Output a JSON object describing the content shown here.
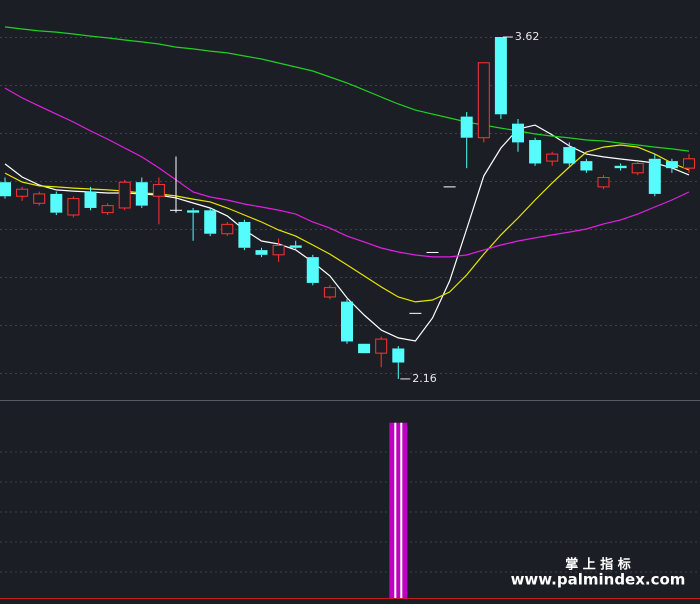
{
  "chart_data": {
    "type": "candlestick",
    "ylim": [
      2.07,
      3.778
    ],
    "yticks": [
      3.62,
      3.415,
      3.21,
      3.005,
      2.8,
      2.595,
      2.39,
      2.185
    ],
    "grid": true,
    "up_color": "#ff3232",
    "down_color": "#54fcfc",
    "doji_color": "#ffffff",
    "open": [
      3.0,
      2.94,
      2.91,
      2.95,
      2.86,
      2.96,
      2.87,
      2.89,
      3.0,
      2.94,
      2.88,
      2.88,
      2.88,
      2.78,
      2.83,
      2.71,
      2.69,
      2.73,
      2.68,
      2.51,
      2.49,
      2.31,
      2.27,
      2.29,
      2.44,
      2.7,
      2.98,
      3.28,
      3.19,
      3.62,
      3.25,
      3.18,
      3.09,
      3.15,
      3.09,
      2.98,
      3.07,
      3.04,
      3.1,
      3.09,
      3.06
    ],
    "close": [
      2.94,
      2.97,
      2.95,
      2.87,
      2.93,
      2.89,
      2.9,
      3.0,
      2.9,
      2.99,
      2.88,
      2.87,
      2.78,
      2.82,
      2.72,
      2.69,
      2.73,
      2.72,
      2.57,
      2.55,
      2.32,
      2.27,
      2.33,
      2.23,
      2.44,
      2.7,
      2.98,
      3.19,
      3.51,
      3.29,
      3.17,
      3.08,
      3.12,
      3.08,
      3.05,
      3.02,
      3.06,
      3.08,
      2.95,
      3.06,
      3.1
    ],
    "high": [
      3.02,
      2.98,
      2.96,
      2.96,
      2.94,
      2.98,
      2.91,
      3.01,
      3.02,
      3.02,
      3.11,
      2.89,
      2.89,
      2.83,
      2.84,
      2.72,
      2.76,
      2.75,
      2.69,
      2.56,
      2.5,
      2.31,
      2.34,
      2.3,
      2.44,
      2.7,
      2.98,
      3.3,
      3.51,
      3.62,
      3.27,
      3.19,
      3.13,
      3.17,
      3.1,
      3.03,
      3.08,
      3.09,
      3.12,
      3.1,
      3.12
    ],
    "low": [
      2.93,
      2.92,
      2.9,
      2.86,
      2.85,
      2.88,
      2.86,
      2.88,
      2.89,
      2.82,
      2.87,
      2.75,
      2.77,
      2.77,
      2.71,
      2.68,
      2.66,
      2.71,
      2.56,
      2.5,
      2.31,
      2.27,
      2.21,
      2.16,
      2.44,
      2.7,
      2.98,
      3.06,
      3.17,
      3.27,
      3.13,
      3.07,
      3.07,
      3.07,
      3.04,
      2.97,
      3.05,
      3.03,
      2.94,
      3.04,
      3.04
    ],
    "series": [
      {
        "color": "#ffffff",
        "values": [
          3.078,
          3.022,
          2.988,
          2.967,
          2.962,
          2.958,
          2.954,
          2.954,
          2.95,
          2.945,
          2.933,
          2.911,
          2.89,
          2.856,
          2.796,
          2.749,
          2.736,
          2.711,
          2.659,
          2.6,
          2.506,
          2.433,
          2.369,
          2.335,
          2.322,
          2.42,
          2.578,
          2.8,
          3.027,
          3.146,
          3.227,
          3.244,
          3.202,
          3.155,
          3.12,
          3.108,
          3.099,
          3.091,
          3.082,
          3.061,
          3.031
        ]
      },
      {
        "color": "#e6e600",
        "values": [
          3.039,
          3.001,
          2.984,
          2.98,
          2.975,
          2.971,
          2.967,
          2.962,
          2.954,
          2.95,
          2.941,
          2.928,
          2.916,
          2.89,
          2.86,
          2.83,
          2.796,
          2.77,
          2.732,
          2.693,
          2.647,
          2.6,
          2.553,
          2.51,
          2.489,
          2.497,
          2.531,
          2.604,
          2.693,
          2.775,
          2.847,
          2.924,
          2.997,
          3.065,
          3.129,
          3.15,
          3.159,
          3.15,
          3.12,
          3.082,
          3.052
        ]
      },
      {
        "color": "#e020e0",
        "values": [
          3.402,
          3.36,
          3.325,
          3.291,
          3.257,
          3.219,
          3.184,
          3.146,
          3.108,
          3.061,
          3.01,
          2.958,
          2.937,
          2.924,
          2.907,
          2.894,
          2.881,
          2.864,
          2.83,
          2.804,
          2.77,
          2.745,
          2.719,
          2.702,
          2.689,
          2.681,
          2.681,
          2.689,
          2.711,
          2.732,
          2.749,
          2.762,
          2.775,
          2.787,
          2.8,
          2.822,
          2.839,
          2.864,
          2.894,
          2.924,
          2.958
        ]
      },
      {
        "color": "#20d020",
        "values": [
          3.663,
          3.654,
          3.646,
          3.641,
          3.633,
          3.624,
          3.616,
          3.607,
          3.599,
          3.59,
          3.577,
          3.569,
          3.56,
          3.552,
          3.539,
          3.526,
          3.509,
          3.492,
          3.475,
          3.449,
          3.424,
          3.394,
          3.364,
          3.334,
          3.308,
          3.291,
          3.274,
          3.257,
          3.244,
          3.231,
          3.219,
          3.206,
          3.197,
          3.189,
          3.18,
          3.176,
          3.167,
          3.159,
          3.15,
          3.142,
          3.133
        ]
      }
    ],
    "high_low_labels": [
      3.62,
      2.16
    ],
    "indicator": {
      "color": "#c000c0",
      "ylim": [
        0,
        1.13
      ],
      "values": [
        0,
        0,
        0,
        0,
        0,
        0,
        0,
        0,
        0,
        0,
        0,
        0,
        0,
        0,
        0,
        0,
        0,
        0,
        0,
        0,
        0,
        0,
        0,
        1,
        0,
        0,
        0,
        0,
        0,
        0,
        0,
        0,
        0,
        0,
        0,
        0,
        0,
        0,
        0,
        0,
        0
      ]
    }
  },
  "watermark": {
    "title": "掌 上 指 标",
    "url": "www.palmindex.com"
  }
}
